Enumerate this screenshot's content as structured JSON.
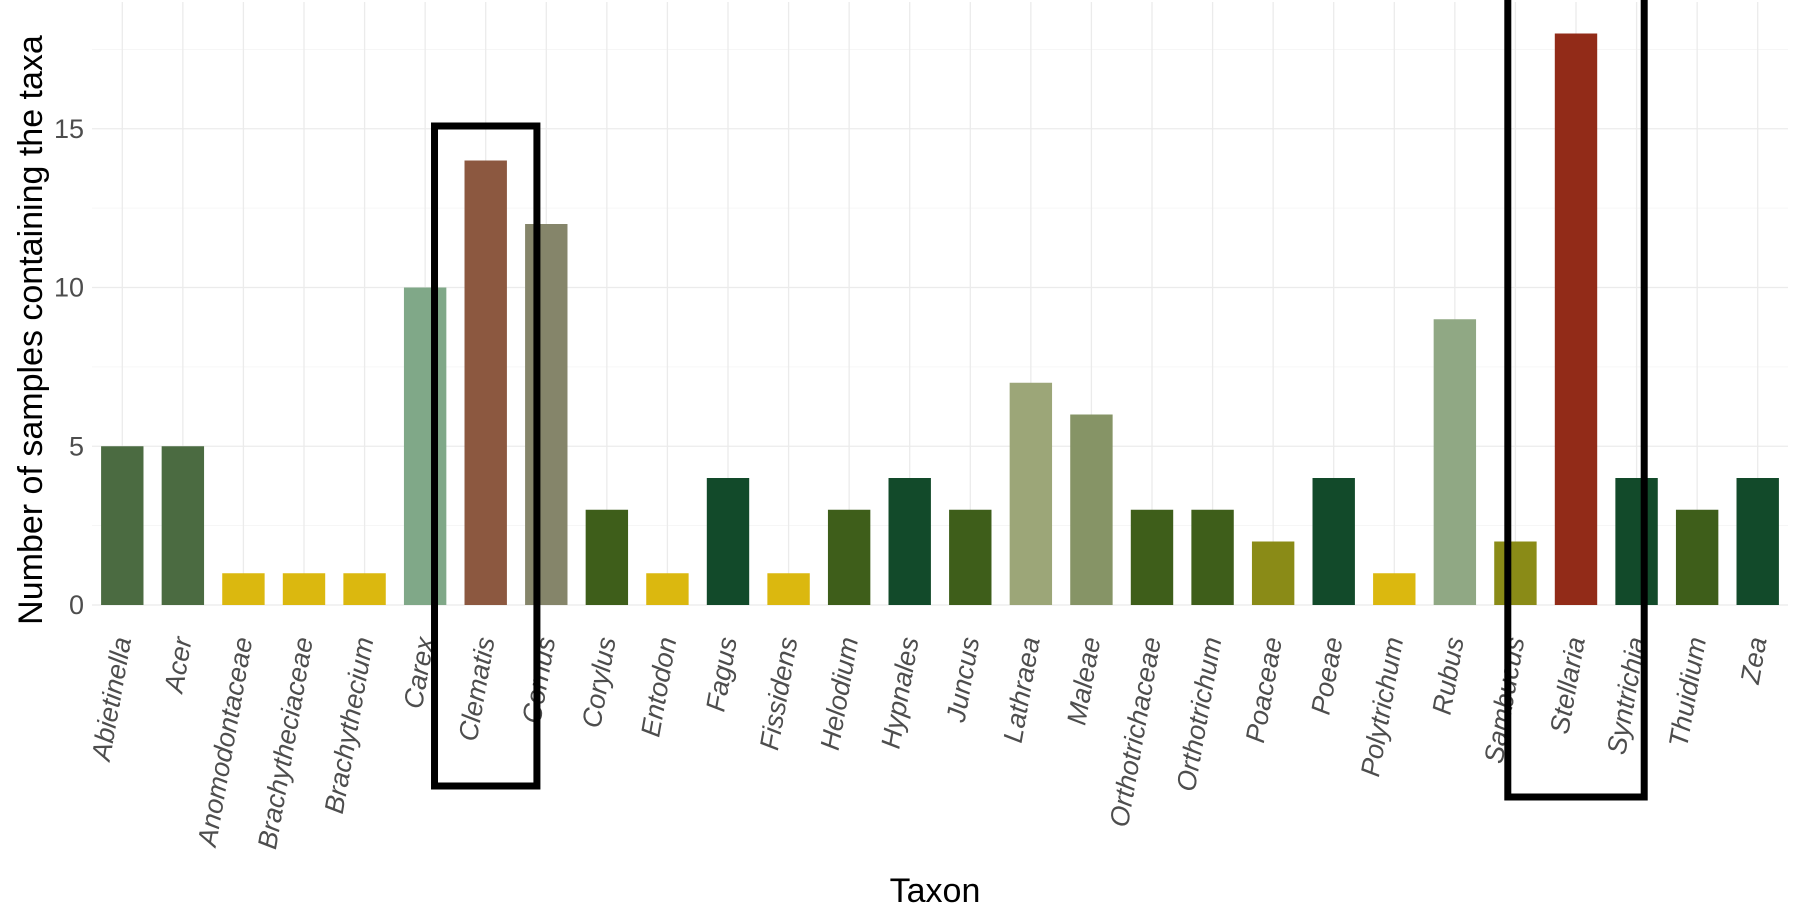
{
  "chart_data": {
    "type": "bar",
    "title": "",
    "xlabel": "Taxon",
    "ylabel": "Number of samples containing the taxa",
    "ylim": [
      0,
      19
    ],
    "yticks": [
      0,
      5,
      10,
      15
    ],
    "grid": true,
    "legend": "none",
    "categories": [
      "Abietinella",
      "Acer",
      "Anomodontaceae",
      "Brachytheciaceae",
      "Brachythecium",
      "Carex",
      "Clematis",
      "Cornus",
      "Corylus",
      "Entodon",
      "Fagus",
      "Fissidens",
      "Helodium",
      "Hypnales",
      "Juncus",
      "Lathraea",
      "Maleae",
      "Orthotrichaceae",
      "Orthotrichum",
      "Poaceae",
      "Poeae",
      "Polytrichum",
      "Rubus",
      "Sambucus",
      "Stellaria",
      "Syntrichia",
      "Thuidium",
      "Zea"
    ],
    "values": [
      5,
      5,
      1,
      1,
      1,
      10,
      14,
      12,
      3,
      1,
      4,
      1,
      3,
      4,
      3,
      7,
      6,
      3,
      3,
      2,
      4,
      1,
      9,
      2,
      18,
      4,
      3,
      4
    ],
    "bar_colors": [
      "#4b6b41",
      "#4b6b41",
      "#dbb80f",
      "#dbb80f",
      "#dbb80f",
      "#80a888",
      "#8c5840",
      "#85856a",
      "#3e5e1a",
      "#dbb80f",
      "#124a2a",
      "#dbb80f",
      "#3e5e1a",
      "#124a2a",
      "#3e5e1a",
      "#9ca678",
      "#869466",
      "#3e5e1a",
      "#3e5e1a",
      "#8a8b17",
      "#124a2a",
      "#dbb80f",
      "#90a884",
      "#8a8b17",
      "#922b18",
      "#124a2a",
      "#3e5e1a",
      "#124a2a"
    ],
    "highlighted": [
      "Clematis",
      "Stellaria"
    ]
  }
}
